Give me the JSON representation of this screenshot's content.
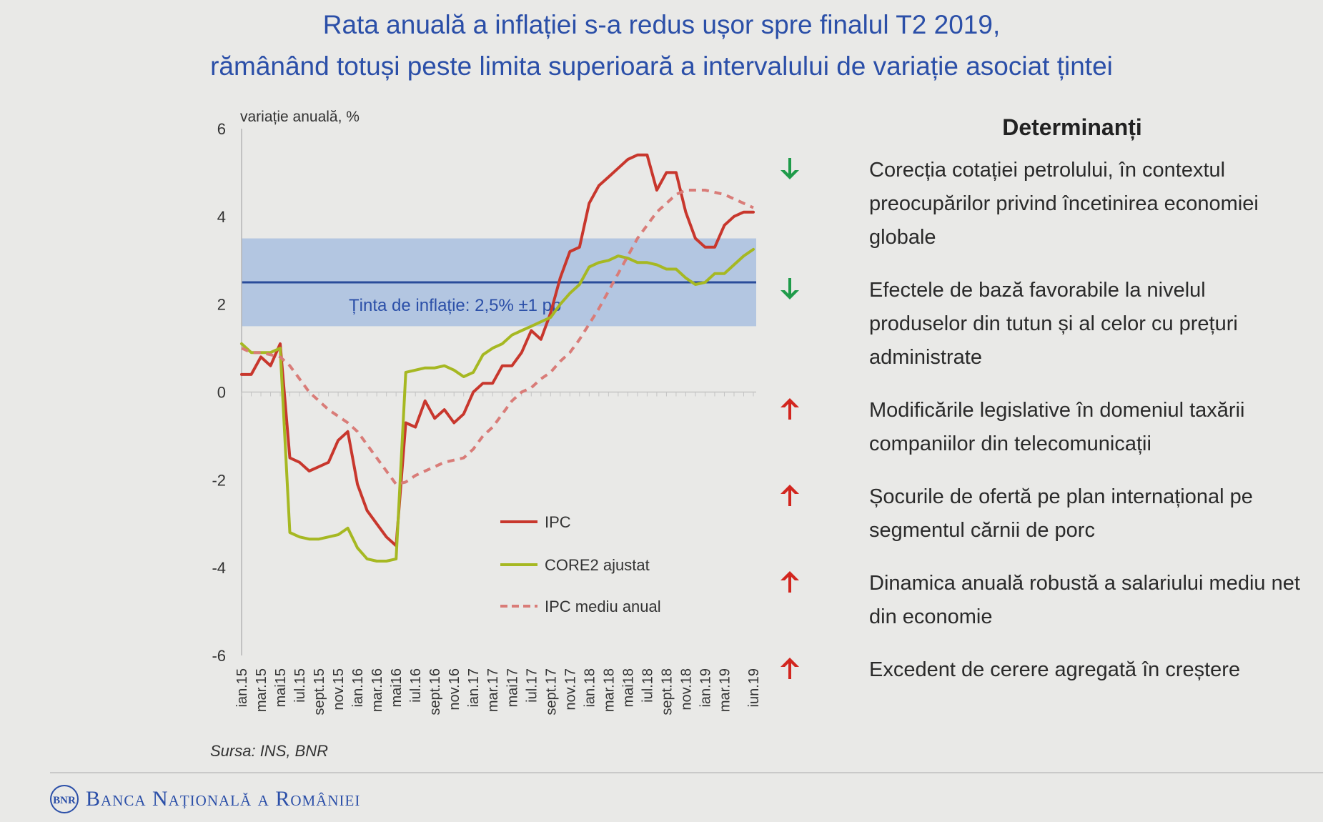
{
  "title": {
    "line1": "Rata anuală a inflației s-a redus ușor spre finalul T2 2019,",
    "line2": "rămânând totuși peste limita superioară a intervalului de variație asociat țintei"
  },
  "chart_data": {
    "type": "line",
    "ylabel": "variație anuală, %",
    "ylim": [
      -6,
      6
    ],
    "yticks": [
      6,
      4,
      2,
      0,
      -2,
      -4,
      -6
    ],
    "x_tick_labels": [
      "ian.15",
      "mar.15",
      "mai15",
      "iul.15",
      "sept.15",
      "nov.15",
      "ian.16",
      "mar.16",
      "mai16",
      "iul.16",
      "sept.16",
      "nov.16",
      "ian.17",
      "mar.17",
      "mai17",
      "iul.17",
      "sept.17",
      "nov.17",
      "ian.18",
      "mar.18",
      "mai18",
      "iul.18",
      "sept.18",
      "nov.18",
      "ian.19",
      "mar.19",
      "iun.19"
    ],
    "x_tick_indices": [
      0,
      2,
      4,
      6,
      8,
      10,
      12,
      14,
      16,
      18,
      20,
      22,
      24,
      26,
      28,
      30,
      32,
      34,
      36,
      38,
      40,
      42,
      44,
      46,
      48,
      50,
      53
    ],
    "n_points": 54,
    "target": {
      "center": 2.5,
      "low": 1.5,
      "high": 3.5,
      "label": "Ținta de inflație: 2,5% ±1 pp"
    },
    "series": [
      {
        "name": "IPC",
        "color": "#c8372d",
        "dash": false,
        "values": [
          0.4,
          0.4,
          0.8,
          0.6,
          1.1,
          -1.5,
          -1.6,
          -1.8,
          -1.7,
          -1.6,
          -1.1,
          -0.9,
          -2.1,
          -2.7,
          -3.0,
          -3.3,
          -3.5,
          -0.7,
          -0.8,
          -0.2,
          -0.6,
          -0.4,
          -0.7,
          -0.5,
          0.0,
          0.2,
          0.2,
          0.6,
          0.6,
          0.9,
          1.4,
          1.2,
          1.8,
          2.6,
          3.2,
          3.3,
          4.3,
          4.7,
          4.9,
          5.1,
          5.3,
          5.4,
          5.4,
          4.6,
          5.0,
          5.0,
          4.1,
          3.5,
          3.3,
          3.3,
          3.8,
          4.0,
          4.1,
          4.1
        ]
      },
      {
        "name": "CORE2 ajustat",
        "color": "#a6b822",
        "dash": false,
        "values": [
          1.1,
          0.9,
          0.9,
          0.9,
          1.0,
          -3.2,
          -3.3,
          -3.35,
          -3.35,
          -3.3,
          -3.25,
          -3.1,
          -3.55,
          -3.8,
          -3.85,
          -3.85,
          -3.8,
          0.45,
          0.5,
          0.55,
          0.55,
          0.6,
          0.5,
          0.35,
          0.45,
          0.85,
          1.0,
          1.1,
          1.3,
          1.4,
          1.5,
          1.6,
          1.7,
          2.0,
          2.25,
          2.45,
          2.85,
          2.95,
          3.0,
          3.1,
          3.05,
          2.95,
          2.95,
          2.9,
          2.8,
          2.8,
          2.6,
          2.45,
          2.5,
          2.7,
          2.7,
          2.9,
          3.1,
          3.25
        ]
      },
      {
        "name": "IPC mediu anual",
        "color": "#d97c78",
        "dash": true,
        "values": [
          1.0,
          0.9,
          0.9,
          0.85,
          0.8,
          0.6,
          0.3,
          0.0,
          -0.2,
          -0.4,
          -0.55,
          -0.7,
          -0.9,
          -1.2,
          -1.5,
          -1.8,
          -2.1,
          -2.05,
          -1.9,
          -1.8,
          -1.7,
          -1.6,
          -1.55,
          -1.5,
          -1.3,
          -1.0,
          -0.8,
          -0.5,
          -0.2,
          0.0,
          0.1,
          0.3,
          0.45,
          0.7,
          0.9,
          1.2,
          1.55,
          1.9,
          2.3,
          2.7,
          3.1,
          3.5,
          3.8,
          4.1,
          4.3,
          4.5,
          4.6,
          4.6,
          4.6,
          4.55,
          4.5,
          4.4,
          4.3,
          4.2
        ]
      }
    ],
    "legend": [
      "IPC",
      "CORE2 ajustat",
      "IPC mediu anual"
    ],
    "legend_position": "bottom-right inside plot"
  },
  "source": "Sursa: INS, BNR",
  "drivers": {
    "title": "Determinanți",
    "items": [
      {
        "direction": "down",
        "text": "Corecția cotației petrolului, în contextul preocupărilor privind încetinirea economiei globale"
      },
      {
        "direction": "down",
        "text": "Efectele de bază favorabile la nivelul produselor din tutun și al celor cu prețuri administrate"
      },
      {
        "direction": "up",
        "text": "Modificările legislative în domeniul taxării companiilor din telecomunicații"
      },
      {
        "direction": "up",
        "text": "Șocurile de ofertă pe plan internațional pe segmentul cărnii de porc"
      },
      {
        "direction": "up",
        "text": "Dinamica anuală robustă a salariului mediu net din economie"
      },
      {
        "direction": "up",
        "text": "Excedent de cerere agregată în creștere"
      }
    ]
  },
  "footer": {
    "bank_name": "Banca Națională a României",
    "logo_letters": "BNR"
  },
  "colors": {
    "down": "#1f9b4a",
    "up": "#d2261f",
    "title": "#2b4fa8",
    "band": "#a9c0df",
    "target_line": "#2a4c9a"
  }
}
